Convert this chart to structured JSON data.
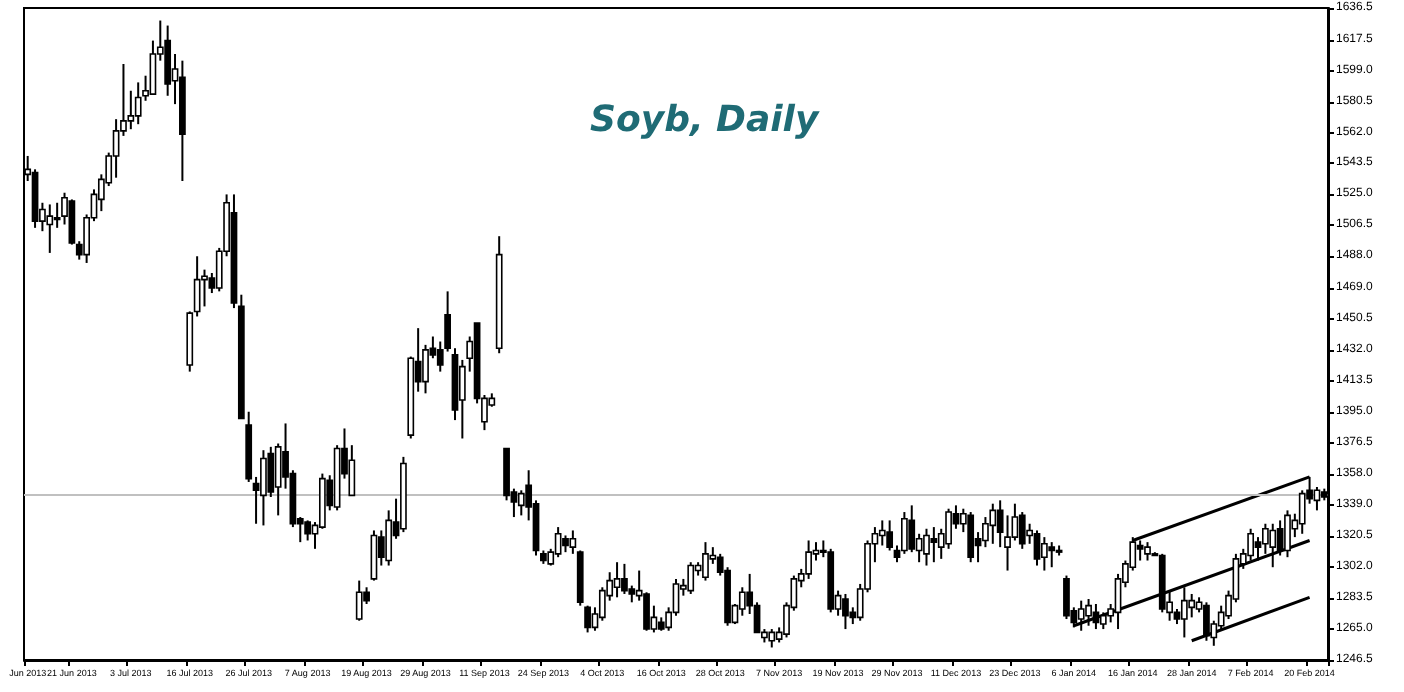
{
  "chart_data": {
    "type": "candlestick",
    "title": "Soyb, Daily",
    "categories": [
      "Jun 2013",
      null,
      null,
      null,
      null,
      null,
      "21 Jun 2013",
      null,
      null,
      null,
      null,
      null,
      null,
      null,
      "3 Jul 2013",
      null,
      null,
      null,
      null,
      null,
      null,
      null,
      "16 Jul 2013",
      null,
      null,
      null,
      null,
      null,
      null,
      null,
      "26 Jul 2013",
      null,
      null,
      null,
      null,
      null,
      null,
      null,
      "7 Aug 2013",
      null,
      null,
      null,
      null,
      null,
      null,
      null,
      "19 Aug 2013",
      null,
      null,
      null,
      null,
      null,
      null,
      null,
      "29 Aug 2013",
      null,
      null,
      null,
      null,
      null,
      null,
      null,
      "11 Sep 2013",
      null,
      null,
      null,
      null,
      null,
      null,
      null,
      "24 Sep 2013",
      null,
      null,
      null,
      null,
      null,
      null,
      null,
      "4 Oct 2013",
      null,
      null,
      null,
      null,
      null,
      null,
      null,
      "16 Oct 2013",
      null,
      null,
      null,
      null,
      null,
      null,
      null,
      "28 Oct 2013",
      null,
      null,
      null,
      null,
      null,
      null,
      null,
      "7 Nov 2013",
      null,
      null,
      null,
      null,
      null,
      null,
      null,
      "19 Nov 2013",
      null,
      null,
      null,
      null,
      null,
      null,
      null,
      "29 Nov 2013",
      null,
      null,
      null,
      null,
      null,
      null,
      null,
      "11 Dec 2013",
      null,
      null,
      null,
      null,
      null,
      null,
      null,
      "23 Dec 2013",
      null,
      null,
      null,
      null,
      null,
      null,
      null,
      "6 Jan 2014",
      null,
      null,
      null,
      null,
      null,
      null,
      null,
      "16 Jan 2014",
      null,
      null,
      null,
      null,
      null,
      null,
      null,
      "28 Jan 2014",
      null,
      null,
      null,
      null,
      null,
      null,
      null,
      "7 Feb 2014",
      null,
      null,
      null,
      null,
      null,
      null,
      null,
      "20 Feb 2014",
      null,
      null
    ],
    "ohlc": [
      [
        1537,
        1548,
        1533,
        1540
      ],
      [
        1538,
        1540,
        1505,
        1509
      ],
      [
        1509,
        1520,
        1503,
        1516
      ],
      [
        1507,
        1519,
        1490,
        1512
      ],
      [
        1511,
        1520,
        1505,
        1511
      ],
      [
        1512,
        1526,
        1507,
        1523
      ],
      [
        1521,
        1522,
        1495,
        1496
      ],
      [
        1495,
        1497,
        1486,
        1489
      ],
      [
        1489,
        1513,
        1484,
        1511
      ],
      [
        1511,
        1528,
        1509,
        1525
      ],
      [
        1522,
        1537,
        1515,
        1534
      ],
      [
        1532,
        1550,
        1530,
        1548
      ],
      [
        1548,
        1570,
        1535,
        1563
      ],
      [
        1563,
        1603,
        1560,
        1569
      ],
      [
        1569,
        1587,
        1564,
        1572
      ],
      [
        1572,
        1592,
        1567,
        1583
      ],
      [
        1584,
        1596,
        1581,
        1587
      ],
      [
        1585,
        1617,
        1585,
        1609
      ],
      [
        1609,
        1629,
        1605,
        1613
      ],
      [
        1617,
        1626,
        1584,
        1591
      ],
      [
        1593,
        1609,
        1579,
        1600
      ],
      [
        1595,
        1605,
        1533,
        1561
      ],
      [
        1423,
        1455,
        1419,
        1454
      ],
      [
        1455,
        1488,
        1452,
        1474
      ],
      [
        1474,
        1480,
        1458,
        1476
      ],
      [
        1475,
        1478,
        1466,
        1469
      ],
      [
        1469,
        1493,
        1467,
        1491
      ],
      [
        1491,
        1525,
        1488,
        1520
      ],
      [
        1514,
        1525,
        1457,
        1460
      ],
      [
        1458,
        1465,
        1391,
        1391
      ],
      [
        1387,
        1395,
        1353,
        1355
      ],
      [
        1352,
        1356,
        1328,
        1348
      ],
      [
        1345,
        1372,
        1327,
        1367
      ],
      [
        1370,
        1374,
        1344,
        1347
      ],
      [
        1350,
        1376,
        1333,
        1374
      ],
      [
        1371,
        1388,
        1349,
        1356
      ],
      [
        1358,
        1360,
        1326,
        1328
      ],
      [
        1331,
        1332,
        1317,
        1328
      ],
      [
        1329,
        1330,
        1318,
        1322
      ],
      [
        1322,
        1329,
        1313,
        1327
      ],
      [
        1326,
        1358,
        1325,
        1355
      ],
      [
        1354,
        1357,
        1336,
        1339
      ],
      [
        1338,
        1375,
        1336,
        1373
      ],
      [
        1373,
        1385,
        1355,
        1358
      ],
      [
        1345,
        1375,
        1345,
        1366
      ],
      [
        1271,
        1294,
        1270,
        1287
      ],
      [
        1287,
        1290,
        1280,
        1282
      ],
      [
        1295,
        1324,
        1294,
        1321
      ],
      [
        1320,
        1324,
        1303,
        1308
      ],
      [
        1306,
        1336,
        1303,
        1330
      ],
      [
        1329,
        1343,
        1319,
        1321
      ],
      [
        1325,
        1368,
        1323,
        1364
      ],
      [
        1381,
        1428,
        1379,
        1427
      ],
      [
        1425,
        1445,
        1407,
        1413
      ],
      [
        1413,
        1435,
        1406,
        1432
      ],
      [
        1433,
        1440,
        1427,
        1429
      ],
      [
        1432,
        1437,
        1419,
        1423
      ],
      [
        1453,
        1467,
        1431,
        1433
      ],
      [
        1429,
        1433,
        1390,
        1396
      ],
      [
        1402,
        1426,
        1379,
        1422
      ],
      [
        1427,
        1440,
        1419,
        1437
      ],
      [
        1448,
        1448,
        1400,
        1403
      ],
      [
        1389,
        1405,
        1384,
        1403
      ],
      [
        1399,
        1406,
        1398,
        1403
      ],
      [
        1433,
        1500,
        1430,
        1489
      ],
      [
        1373,
        1373,
        1342,
        1345
      ],
      [
        1347,
        1349,
        1332,
        1341
      ],
      [
        1339,
        1348,
        1333,
        1346
      ],
      [
        1351,
        1360,
        1330,
        1338
      ],
      [
        1340,
        1342,
        1309,
        1312
      ],
      [
        1310,
        1312,
        1304,
        1306
      ],
      [
        1304,
        1313,
        1303,
        1311
      ],
      [
        1310,
        1326,
        1308,
        1322
      ],
      [
        1319,
        1321,
        1311,
        1315
      ],
      [
        1314,
        1324,
        1310,
        1319
      ],
      [
        1311,
        1312,
        1279,
        1281
      ],
      [
        1278,
        1279,
        1263,
        1266
      ],
      [
        1266,
        1278,
        1264,
        1274
      ],
      [
        1272,
        1290,
        1270,
        1288
      ],
      [
        1285,
        1299,
        1282,
        1294
      ],
      [
        1290,
        1305,
        1284,
        1295
      ],
      [
        1295,
        1304,
        1286,
        1288
      ],
      [
        1289,
        1291,
        1281,
        1286
      ],
      [
        1285,
        1300,
        1282,
        1288
      ],
      [
        1286,
        1287,
        1264,
        1265
      ],
      [
        1265,
        1279,
        1263,
        1272
      ],
      [
        1269,
        1272,
        1264,
        1265
      ],
      [
        1266,
        1278,
        1264,
        1275
      ],
      [
        1275,
        1295,
        1273,
        1292
      ],
      [
        1289,
        1295,
        1285,
        1291
      ],
      [
        1288,
        1305,
        1286,
        1303
      ],
      [
        1300,
        1305,
        1297,
        1303
      ],
      [
        1296,
        1317,
        1294,
        1310
      ],
      [
        1307,
        1314,
        1304,
        1309
      ],
      [
        1308,
        1310,
        1297,
        1299
      ],
      [
        1300,
        1302,
        1267,
        1269
      ],
      [
        1269,
        1280,
        1268,
        1279
      ],
      [
        1277,
        1290,
        1273,
        1287
      ],
      [
        1287,
        1298,
        1274,
        1279
      ],
      [
        1279,
        1281,
        1263,
        1263
      ],
      [
        1260,
        1265,
        1257,
        1263
      ],
      [
        1258,
        1265,
        1254,
        1263
      ],
      [
        1259,
        1266,
        1257,
        1263
      ],
      [
        1262,
        1281,
        1260,
        1279
      ],
      [
        1278,
        1297,
        1276,
        1295
      ],
      [
        1294,
        1301,
        1290,
        1298
      ],
      [
        1298,
        1318,
        1295,
        1311
      ],
      [
        1310,
        1317,
        1306,
        1312
      ],
      [
        1312,
        1318,
        1308,
        1311
      ],
      [
        1311,
        1313,
        1275,
        1277
      ],
      [
        1277,
        1288,
        1273,
        1285
      ],
      [
        1283,
        1286,
        1265,
        1273
      ],
      [
        1275,
        1278,
        1268,
        1272
      ],
      [
        1272,
        1292,
        1270,
        1289
      ],
      [
        1289,
        1318,
        1287,
        1316
      ],
      [
        1316,
        1326,
        1305,
        1322
      ],
      [
        1321,
        1330,
        1315,
        1324
      ],
      [
        1323,
        1330,
        1312,
        1314
      ],
      [
        1312,
        1315,
        1305,
        1308
      ],
      [
        1312,
        1335,
        1310,
        1331
      ],
      [
        1330,
        1339,
        1311,
        1313
      ],
      [
        1312,
        1322,
        1305,
        1319
      ],
      [
        1310,
        1325,
        1303,
        1321
      ],
      [
        1319,
        1326,
        1305,
        1317
      ],
      [
        1314,
        1325,
        1307,
        1322
      ],
      [
        1316,
        1337,
        1313,
        1335
      ],
      [
        1334,
        1339,
        1325,
        1328
      ],
      [
        1328,
        1337,
        1323,
        1334
      ],
      [
        1333,
        1335,
        1305,
        1308
      ],
      [
        1319,
        1323,
        1305,
        1315
      ],
      [
        1318,
        1332,
        1314,
        1328
      ],
      [
        1327,
        1340,
        1316,
        1336
      ],
      [
        1336,
        1342,
        1314,
        1323
      ],
      [
        1314,
        1333,
        1300,
        1320
      ],
      [
        1320,
        1340,
        1318,
        1332
      ],
      [
        1333,
        1335,
        1313,
        1316
      ],
      [
        1321,
        1328,
        1316,
        1324
      ],
      [
        1322,
        1324,
        1303,
        1307
      ],
      [
        1308,
        1320,
        1300,
        1316
      ],
      [
        1314,
        1317,
        1302,
        1312
      ],
      [
        1312,
        1315,
        1309,
        1312
      ],
      [
        1295,
        1297,
        1271,
        1273
      ],
      [
        1276,
        1278,
        1266,
        1269
      ],
      [
        1271,
        1282,
        1264,
        1277
      ],
      [
        1273,
        1283,
        1267,
        1279
      ],
      [
        1275,
        1280,
        1265,
        1269
      ],
      [
        1268,
        1275,
        1265,
        1273
      ],
      [
        1273,
        1280,
        1269,
        1277
      ],
      [
        1275,
        1298,
        1265,
        1295
      ],
      [
        1293,
        1306,
        1290,
        1304
      ],
      [
        1302,
        1320,
        1300,
        1317
      ],
      [
        1315,
        1318,
        1306,
        1313
      ],
      [
        1310,
        1317,
        1306,
        1314
      ],
      [
        1310,
        1311,
        1309,
        1310
      ],
      [
        1309,
        1310,
        1275,
        1277
      ],
      [
        1275,
        1288,
        1270,
        1281
      ],
      [
        1275,
        1277,
        1268,
        1271
      ],
      [
        1271,
        1290,
        1260,
        1282
      ],
      [
        1278,
        1286,
        1272,
        1282
      ],
      [
        1277,
        1284,
        1275,
        1281
      ],
      [
        1279,
        1281,
        1258,
        1261
      ],
      [
        1260,
        1270,
        1255,
        1268
      ],
      [
        1267,
        1279,
        1265,
        1275
      ],
      [
        1273,
        1288,
        1271,
        1285
      ],
      [
        1283,
        1310,
        1281,
        1307
      ],
      [
        1304,
        1313,
        1301,
        1310
      ],
      [
        1309,
        1325,
        1306,
        1322
      ],
      [
        1317,
        1320,
        1306,
        1314
      ],
      [
        1316,
        1328,
        1310,
        1325
      ],
      [
        1314,
        1328,
        1302,
        1324
      ],
      [
        1325,
        1330,
        1309,
        1312
      ],
      [
        1312,
        1336,
        1308,
        1333
      ],
      [
        1325,
        1334,
        1320,
        1330
      ],
      [
        1328,
        1348,
        1322,
        1346
      ],
      [
        1348,
        1356,
        1340,
        1343
      ],
      [
        1342,
        1350,
        1336,
        1348
      ],
      [
        1347,
        1349,
        1342,
        1344
      ]
    ],
    "series": [
      {
        "type": "line",
        "color": "#000000",
        "x": [
          "16 Jan 2014",
          "20 Feb 2014"
        ],
        "values": [
          1318,
          1356
        ]
      },
      {
        "type": "line",
        "color": "#000000",
        "x": [
          "6 Jan 2014",
          "20 Feb 2014"
        ],
        "values": [
          1267,
          1318
        ]
      },
      {
        "type": "line",
        "color": "#000000",
        "x": [
          "28 Jan 2014",
          "20 Feb 2014"
        ],
        "values": [
          1258,
          1284
        ]
      }
    ],
    "ylim": [
      1246.5,
      1636.5
    ],
    "yticks": [
      1246.5,
      {
        "value": 1265,
        "label": "1265.0"
      },
      1283.5,
      {
        "value": 1302,
        "label": "1302.0"
      },
      1320.5,
      {
        "value": 1339,
        "label": "1339.0"
      },
      {
        "value": 1358,
        "label": "1358.0"
      },
      1376.5,
      {
        "value": 1395,
        "label": "1395.0"
      },
      1413.5,
      {
        "value": 1432,
        "label": "1432.0"
      },
      1450.5,
      {
        "value": 1469,
        "label": "1469.0"
      },
      {
        "value": 1488,
        "label": "1488.0"
      },
      1506.5,
      {
        "value": 1525,
        "label": "1525.0"
      },
      1543.5,
      {
        "value": 1562,
        "label": "1562.0"
      },
      1580.5,
      {
        "value": 1599,
        "label": "1599.0"
      },
      1617.5,
      1636.5
    ],
    "ref_lines": [
      {
        "axis": "y",
        "value": 1345,
        "color": "#c0c0c0"
      }
    ],
    "grid": false
  }
}
